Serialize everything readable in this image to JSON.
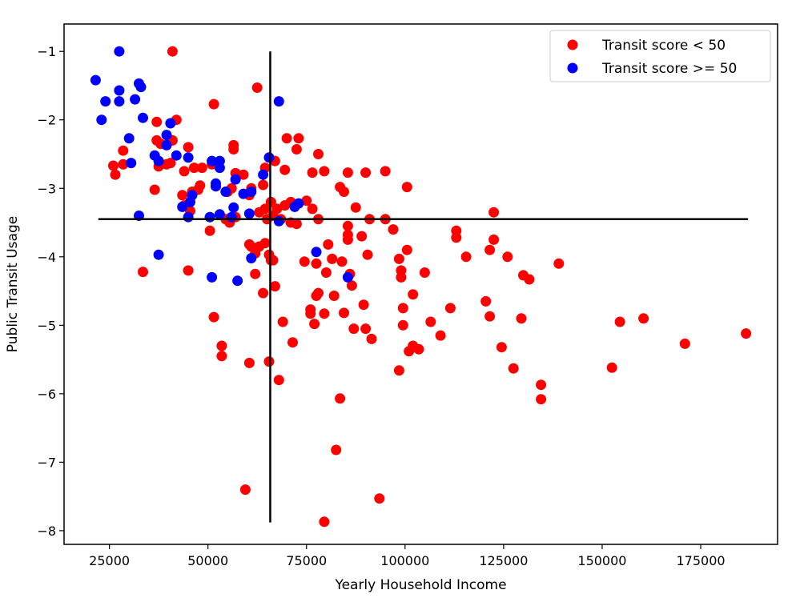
{
  "chart_data": {
    "type": "scatter",
    "xlabel": "Yearly Household Income",
    "ylabel": "Public Transit Usage",
    "xlim": [
      13500,
      194500
    ],
    "ylim": [
      -8.2,
      -0.6
    ],
    "x_ticks": [
      25000,
      50000,
      75000,
      100000,
      125000,
      150000,
      175000
    ],
    "y_ticks": [
      -1,
      -2,
      -3,
      -4,
      -5,
      -6,
      -7,
      -8
    ],
    "legend_position": "top-right",
    "colors": {
      "low": "#ff0000",
      "high": "#0000ff",
      "lines": "#000000"
    },
    "reference_lines": {
      "vertical_x": 65800,
      "vertical_y_range": [
        -7.88,
        -1.0
      ],
      "horizontal_y": -3.45,
      "horizontal_x_range": [
        22200,
        187000
      ]
    },
    "series": [
      {
        "name": "Transit score < 50",
        "color": "#ff0000",
        "points": [
          [
            41000,
            -1.0
          ],
          [
            62500,
            -1.53
          ],
          [
            51500,
            -1.77
          ],
          [
            42000,
            -2.0
          ],
          [
            37000,
            -2.03
          ],
          [
            41000,
            -2.3
          ],
          [
            37000,
            -2.3
          ],
          [
            38000,
            -2.35
          ],
          [
            45000,
            -2.4
          ],
          [
            28500,
            -2.45
          ],
          [
            56500,
            -2.37
          ],
          [
            56500,
            -2.43
          ],
          [
            70000,
            -2.27
          ],
          [
            73000,
            -2.27
          ],
          [
            72500,
            -2.43
          ],
          [
            78000,
            -2.5
          ],
          [
            67000,
            -2.6
          ],
          [
            26000,
            -2.67
          ],
          [
            28500,
            -2.65
          ],
          [
            37500,
            -2.68
          ],
          [
            39500,
            -2.65
          ],
          [
            40500,
            -2.63
          ],
          [
            44000,
            -2.75
          ],
          [
            46500,
            -2.7
          ],
          [
            48500,
            -2.7
          ],
          [
            51000,
            -2.65
          ],
          [
            57000,
            -2.78
          ],
          [
            59000,
            -2.8
          ],
          [
            64500,
            -2.7
          ],
          [
            69500,
            -2.73
          ],
          [
            76500,
            -2.77
          ],
          [
            79500,
            -2.75
          ],
          [
            85500,
            -2.77
          ],
          [
            90000,
            -2.77
          ],
          [
            95000,
            -2.75
          ],
          [
            26500,
            -2.8
          ],
          [
            36500,
            -3.02
          ],
          [
            43500,
            -3.1
          ],
          [
            46000,
            -3.05
          ],
          [
            47500,
            -3.02
          ],
          [
            48000,
            -2.96
          ],
          [
            52000,
            -2.97
          ],
          [
            55000,
            -3.05
          ],
          [
            56000,
            -3.0
          ],
          [
            60500,
            -3.1
          ],
          [
            61000,
            -3.0
          ],
          [
            64000,
            -2.95
          ],
          [
            83500,
            -2.98
          ],
          [
            84500,
            -3.05
          ],
          [
            100500,
            -2.98
          ],
          [
            44000,
            -3.25
          ],
          [
            45500,
            -3.33
          ],
          [
            50500,
            -3.42
          ],
          [
            54500,
            -3.45
          ],
          [
            55500,
            -3.5
          ],
          [
            57000,
            -3.42
          ],
          [
            63000,
            -3.35
          ],
          [
            64500,
            -3.3
          ],
          [
            66000,
            -3.2
          ],
          [
            67500,
            -3.3
          ],
          [
            69500,
            -3.25
          ],
          [
            71000,
            -3.2
          ],
          [
            75000,
            -3.18
          ],
          [
            76500,
            -3.3
          ],
          [
            87500,
            -3.28
          ],
          [
            65000,
            -3.45
          ],
          [
            66500,
            -3.4
          ],
          [
            68500,
            -3.45
          ],
          [
            71000,
            -3.5
          ],
          [
            72500,
            -3.52
          ],
          [
            78000,
            -3.45
          ],
          [
            85500,
            -3.55
          ],
          [
            91000,
            -3.45
          ],
          [
            95000,
            -3.45
          ],
          [
            97000,
            -3.6
          ],
          [
            122500,
            -3.35
          ],
          [
            50500,
            -3.62
          ],
          [
            60500,
            -3.82
          ],
          [
            61000,
            -3.85
          ],
          [
            62000,
            -3.95
          ],
          [
            63000,
            -3.85
          ],
          [
            64500,
            -3.8
          ],
          [
            65500,
            -3.97
          ],
          [
            66000,
            -4.05
          ],
          [
            66500,
            -4.05
          ],
          [
            80500,
            -3.82
          ],
          [
            85500,
            -3.68
          ],
          [
            85500,
            -3.75
          ],
          [
            89000,
            -3.7
          ],
          [
            113000,
            -3.62
          ],
          [
            113000,
            -3.72
          ],
          [
            122500,
            -3.75
          ],
          [
            62000,
            -4.25
          ],
          [
            74500,
            -4.07
          ],
          [
            77500,
            -4.1
          ],
          [
            80000,
            -4.23
          ],
          [
            81500,
            -4.03
          ],
          [
            84000,
            -4.07
          ],
          [
            86000,
            -4.25
          ],
          [
            90500,
            -3.97
          ],
          [
            98500,
            -4.03
          ],
          [
            99000,
            -4.2
          ],
          [
            99000,
            -4.3
          ],
          [
            100500,
            -3.9
          ],
          [
            105000,
            -4.23
          ],
          [
            115500,
            -4.0
          ],
          [
            121500,
            -3.9
          ],
          [
            126000,
            -4.0
          ],
          [
            130000,
            -4.27
          ],
          [
            131500,
            -4.33
          ],
          [
            139000,
            -4.1
          ],
          [
            33500,
            -4.22
          ],
          [
            45000,
            -4.2
          ],
          [
            67000,
            -4.43
          ],
          [
            64000,
            -4.53
          ],
          [
            76000,
            -4.77
          ],
          [
            76000,
            -4.83
          ],
          [
            77500,
            -4.57
          ],
          [
            78000,
            -4.53
          ],
          [
            79500,
            -4.83
          ],
          [
            82000,
            -4.57
          ],
          [
            86500,
            -4.42
          ],
          [
            89500,
            -4.7
          ],
          [
            84500,
            -4.82
          ],
          [
            99500,
            -4.75
          ],
          [
            102000,
            -4.55
          ],
          [
            111500,
            -4.75
          ],
          [
            120500,
            -4.65
          ],
          [
            121500,
            -4.87
          ],
          [
            129500,
            -4.9
          ],
          [
            51500,
            -4.88
          ],
          [
            69000,
            -4.95
          ],
          [
            77000,
            -4.98
          ],
          [
            87000,
            -5.05
          ],
          [
            90000,
            -5.05
          ],
          [
            91500,
            -5.2
          ],
          [
            99500,
            -5.0
          ],
          [
            101000,
            -5.38
          ],
          [
            102000,
            -5.3
          ],
          [
            103500,
            -5.35
          ],
          [
            106500,
            -4.95
          ],
          [
            109000,
            -5.15
          ],
          [
            124500,
            -5.32
          ],
          [
            154500,
            -4.95
          ],
          [
            160500,
            -4.9
          ],
          [
            171000,
            -5.27
          ],
          [
            186500,
            -5.12
          ],
          [
            53500,
            -5.3
          ],
          [
            53500,
            -5.45
          ],
          [
            71500,
            -5.25
          ],
          [
            60500,
            -5.55
          ],
          [
            65500,
            -5.53
          ],
          [
            98500,
            -5.66
          ],
          [
            127500,
            -5.63
          ],
          [
            152500,
            -5.62
          ],
          [
            68000,
            -5.8
          ],
          [
            134500,
            -5.87
          ],
          [
            134500,
            -6.08
          ],
          [
            83500,
            -6.07
          ],
          [
            82500,
            -6.82
          ],
          [
            59500,
            -7.4
          ],
          [
            93500,
            -7.53
          ],
          [
            79500,
            -7.87
          ]
        ]
      },
      {
        "name": "Transit score >= 50",
        "color": "#0000ff",
        "points": [
          [
            27500,
            -1.0
          ],
          [
            21500,
            -1.42
          ],
          [
            32500,
            -1.47
          ],
          [
            33000,
            -1.52
          ],
          [
            27500,
            -1.57
          ],
          [
            24000,
            -1.73
          ],
          [
            27500,
            -1.73
          ],
          [
            31500,
            -1.7
          ],
          [
            68000,
            -1.73
          ],
          [
            23000,
            -2.0
          ],
          [
            33500,
            -1.97
          ],
          [
            40500,
            -2.05
          ],
          [
            39500,
            -2.22
          ],
          [
            30000,
            -2.27
          ],
          [
            39500,
            -2.37
          ],
          [
            36500,
            -2.52
          ],
          [
            37500,
            -2.6
          ],
          [
            42000,
            -2.52
          ],
          [
            45000,
            -2.55
          ],
          [
            30500,
            -2.63
          ],
          [
            51000,
            -2.6
          ],
          [
            53000,
            -2.6
          ],
          [
            53000,
            -2.7
          ],
          [
            57000,
            -2.87
          ],
          [
            64000,
            -2.8
          ],
          [
            65500,
            -2.55
          ],
          [
            52000,
            -2.93
          ],
          [
            52000,
            -2.97
          ],
          [
            54500,
            -3.05
          ],
          [
            59000,
            -3.08
          ],
          [
            46000,
            -3.1
          ],
          [
            61000,
            -3.05
          ],
          [
            45500,
            -3.2
          ],
          [
            43500,
            -3.27
          ],
          [
            73000,
            -3.22
          ],
          [
            72000,
            -3.27
          ],
          [
            56500,
            -3.28
          ],
          [
            60500,
            -3.37
          ],
          [
            32500,
            -3.4
          ],
          [
            45000,
            -3.42
          ],
          [
            50500,
            -3.42
          ],
          [
            53000,
            -3.38
          ],
          [
            56000,
            -3.42
          ],
          [
            68000,
            -3.48
          ],
          [
            37500,
            -3.97
          ],
          [
            61000,
            -4.02
          ],
          [
            77500,
            -3.93
          ],
          [
            51000,
            -4.3
          ],
          [
            57500,
            -4.35
          ],
          [
            85500,
            -4.3
          ]
        ]
      }
    ]
  }
}
